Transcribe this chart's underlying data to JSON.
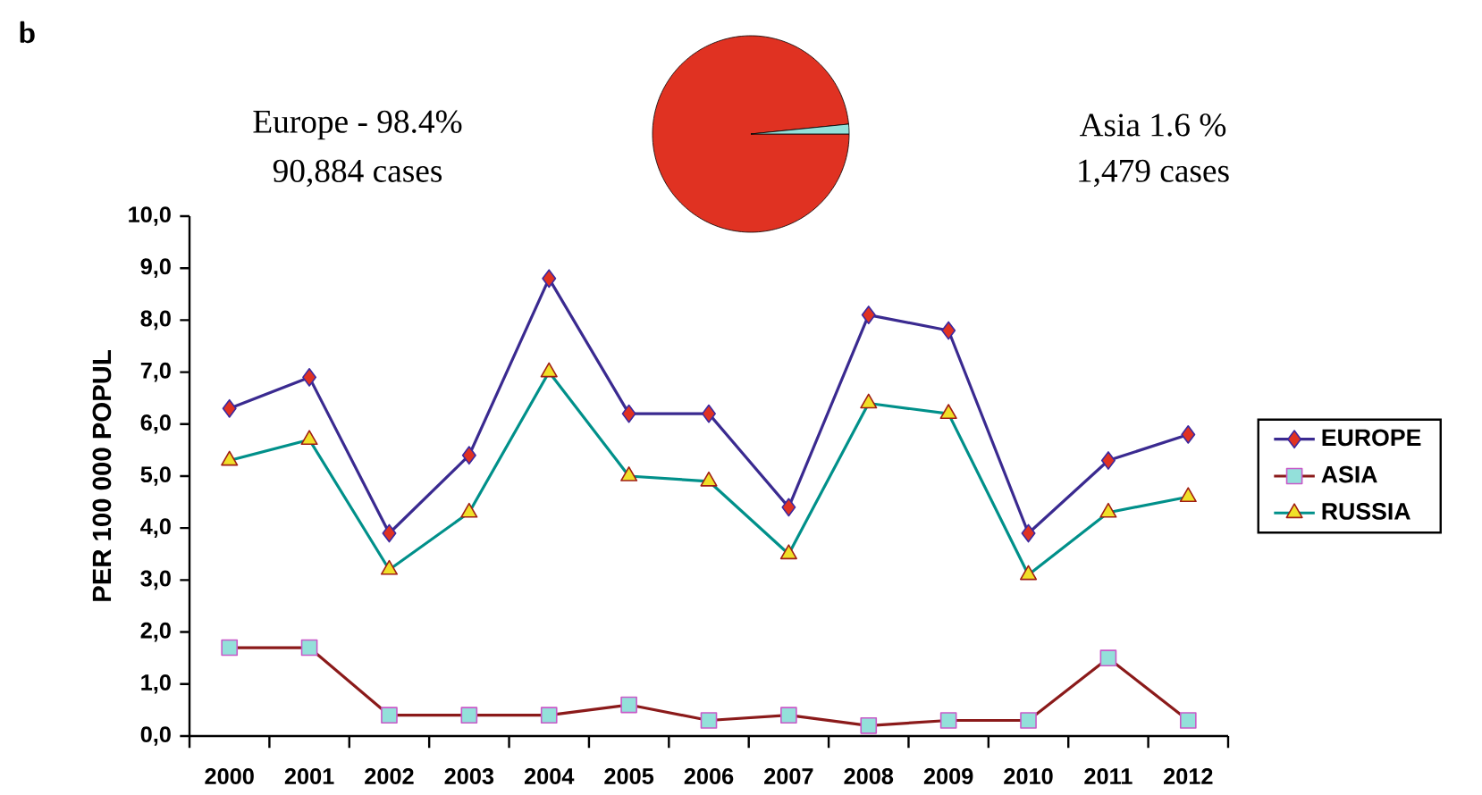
{
  "chart_data": [
    {
      "type": "pie",
      "categories": [
        null,
        null
      ],
      "values": [
        98.4,
        1.6
      ],
      "colors": [
        "#e03222",
        "#93e0da"
      ],
      "annotations": [
        "b",
        "Europe - 98.4%",
        "90,884 cases",
        "Asia 1.6 %",
        "1,479 cases"
      ]
    },
    {
      "type": "line",
      "ylabel": "PER 100 000 POPUL",
      "categories": [
        "2000",
        "2001",
        "2002",
        "2003",
        "2004",
        "2005",
        "2006",
        "2007",
        "2008",
        "2009",
        "2010",
        "2011",
        "2012"
      ],
      "series": [
        {
          "name": "EUROPE",
          "color": "#3a2a90",
          "marker": "diamond",
          "values": [
            6.3,
            6.9,
            3.9,
            5.4,
            8.8,
            6.2,
            6.2,
            4.4,
            8.1,
            7.8,
            3.9,
            5.3,
            5.8
          ]
        },
        {
          "name": "ASIA",
          "color": "#8b1a1a",
          "marker": "square",
          "values": [
            1.7,
            1.7,
            0.4,
            0.4,
            0.4,
            0.6,
            0.3,
            0.4,
            0.2,
            0.3,
            0.3,
            1.5,
            0.3
          ]
        },
        {
          "name": "RUSSIA",
          "color": "#00908a",
          "marker": "triangle",
          "values": [
            5.3,
            5.7,
            3.2,
            4.3,
            7.0,
            5.0,
            4.9,
            3.5,
            6.4,
            6.2,
            3.1,
            4.3,
            4.6
          ]
        }
      ],
      "ylim": [
        0,
        10
      ],
      "yticks": [
        {
          "value": 0,
          "label": "0,0"
        },
        {
          "value": 1,
          "label": "1,0"
        },
        {
          "value": 2,
          "label": "2,0"
        },
        {
          "value": 3,
          "label": "3,0"
        },
        {
          "value": 4,
          "label": "4,0"
        },
        {
          "value": 5,
          "label": "5,0"
        },
        {
          "value": 6,
          "label": "6,0"
        },
        {
          "value": 7,
          "label": "7,0"
        },
        {
          "value": 8,
          "label": "8,0"
        },
        {
          "value": 9,
          "label": "9,0"
        },
        {
          "value": 10,
          "label": "10,0"
        }
      ],
      "grid": false,
      "legend": "right"
    }
  ]
}
